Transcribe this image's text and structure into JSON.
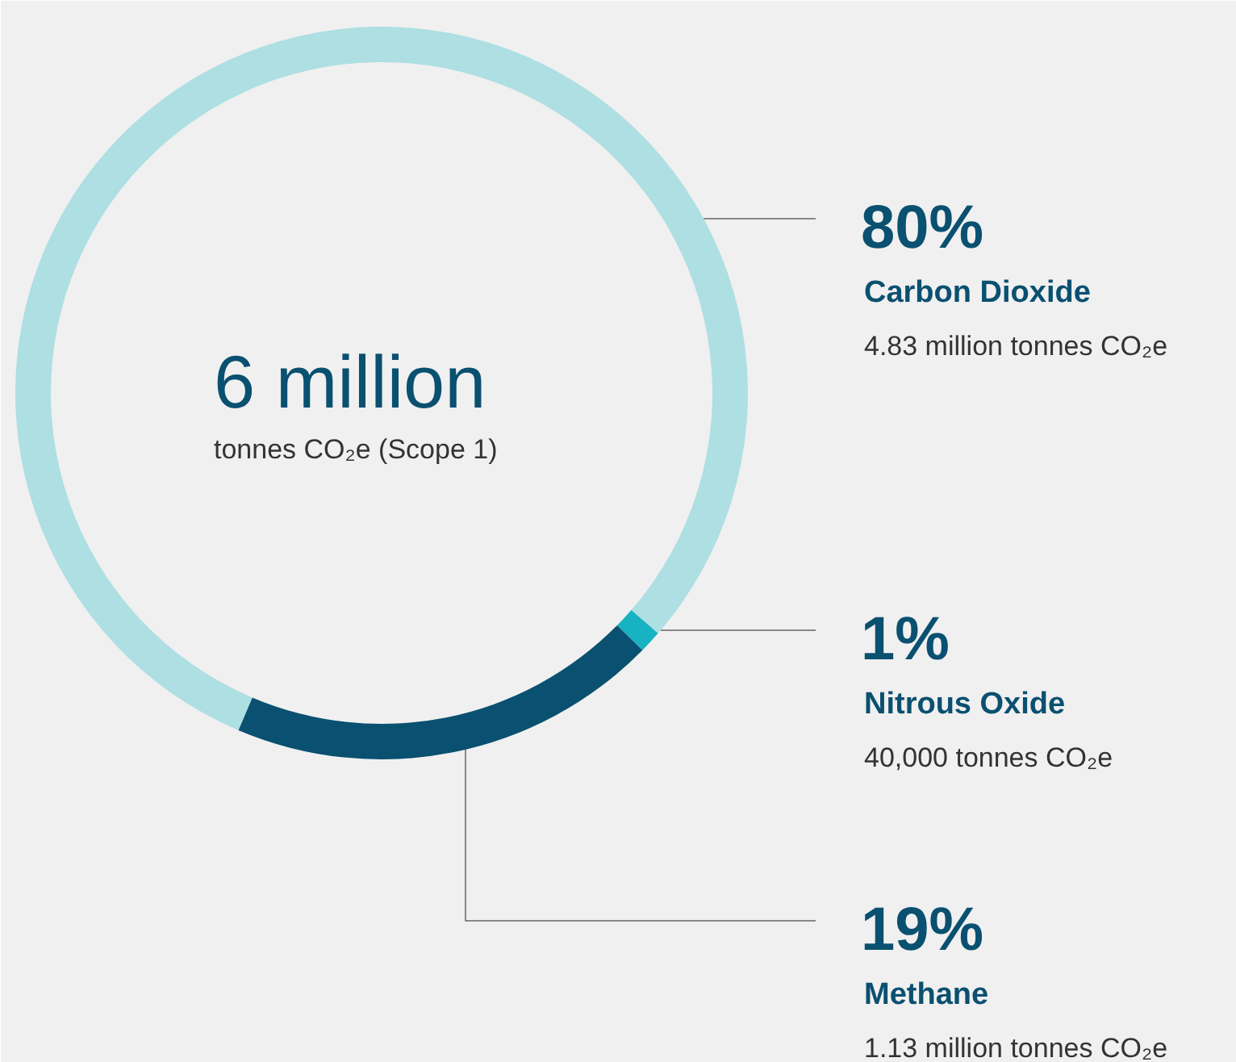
{
  "chart_data": {
    "type": "donut",
    "title": "6 million",
    "subtitle": "tonnes CO₂e (Scope 1)",
    "categories": [
      "Carbon Dioxide",
      "Nitrous Oxide",
      "Methane"
    ],
    "values": [
      80,
      1,
      19
    ],
    "colors": [
      "#aedfe2",
      "#17b3c2",
      "#0a5070"
    ],
    "value_labels": [
      "80%",
      "1%",
      "19%"
    ],
    "annotations": [
      "4.83 million tonnes CO₂e",
      "40,000 tonnes CO₂e",
      "1.13 million tonnes CO₂e"
    ]
  }
}
